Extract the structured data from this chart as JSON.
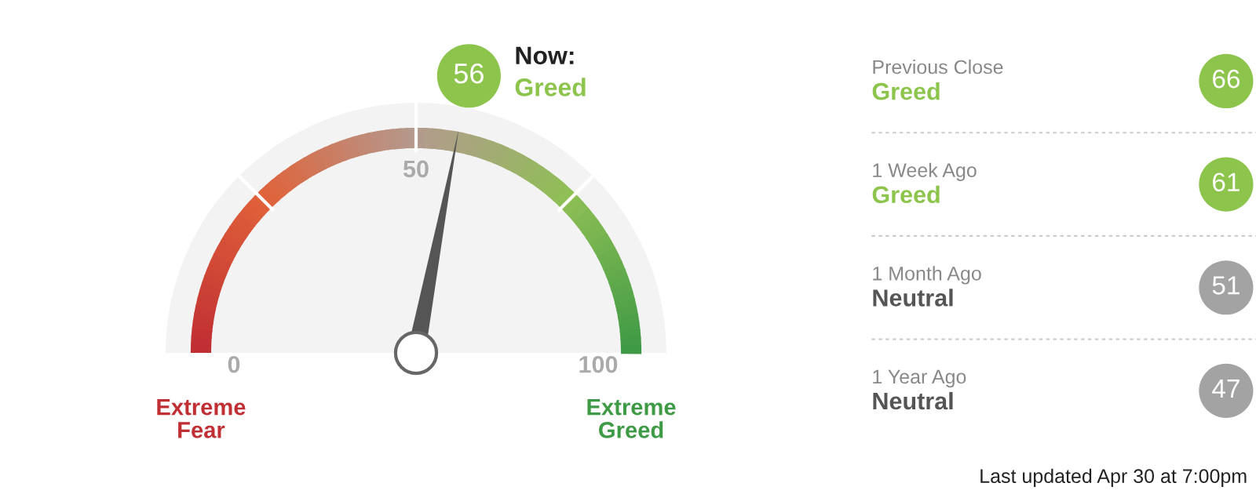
{
  "chart_data": [
    {
      "type": "other",
      "values": [
        56
      ],
      "color": "#8cc44c",
      "data_labels": true,
      "annotations": [
        "0",
        "50",
        "100",
        "Now:",
        "Greed",
        "Extreme Fear",
        "Extreme Greed"
      ]
    },
    {
      "type": "other",
      "categories": [
        "Previous Close",
        "1 Week Ago",
        "1 Month Ago",
        "1 Year Ago"
      ],
      "values": [
        66,
        61,
        51,
        47
      ],
      "colors": [
        "#8cc44c",
        "#8cc44c",
        "#a3a3a3",
        "#a3a3a3"
      ],
      "data_labels": true,
      "annotations": [
        "Greed",
        "Greed",
        "Neutral",
        "Neutral",
        "Last updated Apr 30 at 7:00pm"
      ]
    }
  ]
}
